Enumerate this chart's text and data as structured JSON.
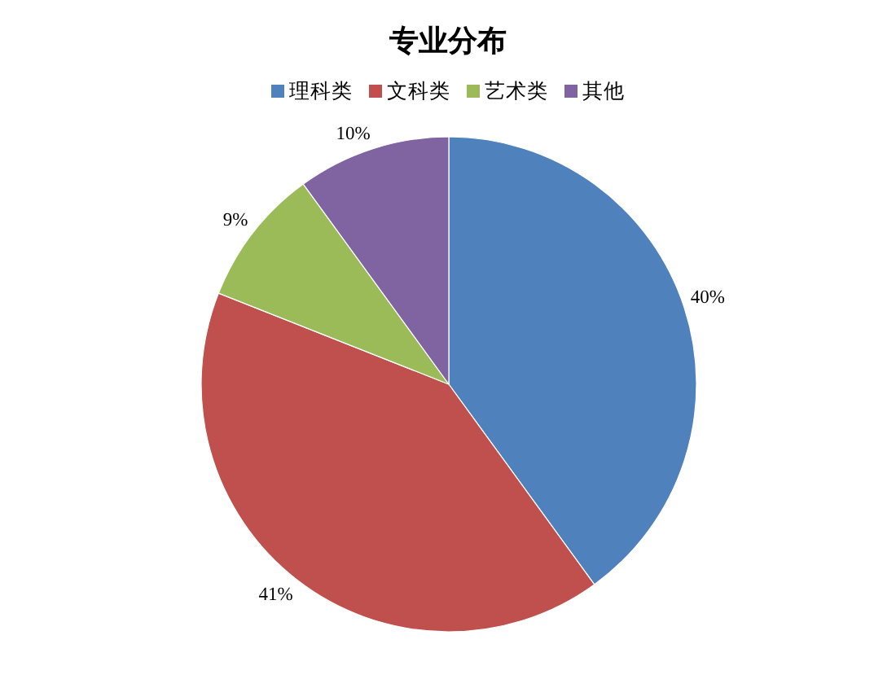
{
  "chart_data": {
    "type": "pie",
    "title": "专业分布",
    "categories": [
      "理科类",
      "文科类",
      "艺术类",
      "其他"
    ],
    "values": [
      40,
      41,
      9,
      10
    ],
    "colors": [
      "#4f81bd",
      "#c0504d",
      "#9bbb59",
      "#8064a2"
    ],
    "value_labels": [
      "40%",
      "41%",
      "9%",
      "10%"
    ],
    "legend": "top"
  }
}
